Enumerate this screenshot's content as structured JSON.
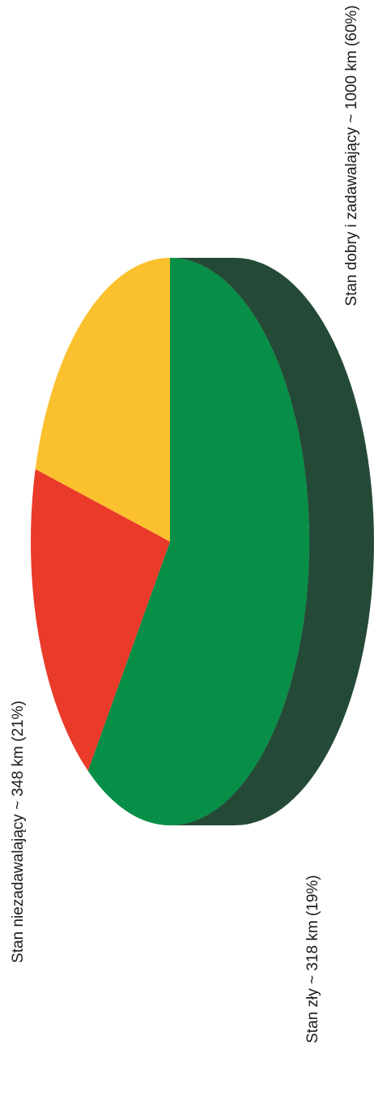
{
  "chart_data": {
    "type": "pie",
    "title": "",
    "style": "3d-rotated",
    "slices": [
      {
        "label": "Stan dobry i zadawalający ~ 1000 km (60%)",
        "value": 1000,
        "percent": 60,
        "color": "#078E47",
        "side_color": "#244A37"
      },
      {
        "label": "Stan niezadawalający ~ 348 km (21%)",
        "value": 348,
        "percent": 21,
        "color": "#FBC02D",
        "side_color": "#C89A22"
      },
      {
        "label": "Stan zły ~ 318 km (19%)",
        "value": 318,
        "percent": 19,
        "color": "#EA3A2A",
        "side_color": "#C9303A"
      }
    ]
  }
}
